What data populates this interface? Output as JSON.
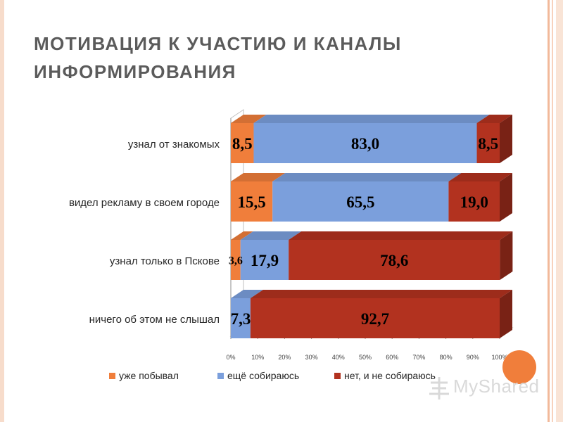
{
  "slide": {
    "title_line1": "МОТИВАЦИЯ К УЧАСТИЮ И КАНАЛЫ",
    "title_line2": "ИНФОРМИРОВАНИЯ"
  },
  "chart_data": {
    "type": "bar",
    "orientation": "horizontal",
    "stacked": "percent",
    "style": "3d",
    "categories": [
      "узнал от знакомых",
      "видел рекламу в своем городе",
      "узнал только в Пскове",
      "ничего об этом не слышал"
    ],
    "series": [
      {
        "name": "уже побывал",
        "values": [
          8.5,
          15.5,
          3.6,
          0
        ],
        "labels": [
          "8,5",
          "15,5",
          "3,6",
          ""
        ],
        "color": "#f07e3b"
      },
      {
        "name": "ещё собираюсь",
        "values": [
          83.0,
          65.5,
          17.9,
          7.3
        ],
        "labels": [
          "83,0",
          "65,5",
          "17,9",
          "7,3"
        ],
        "color": "#7b9fdc"
      },
      {
        "name": "нет, и не собираюсь",
        "values": [
          8.5,
          19.0,
          78.6,
          92.7
        ],
        "labels": [
          "8,5",
          "19,0",
          "78,6",
          "92,7"
        ],
        "color": "#b2321f"
      }
    ],
    "xlim": [
      0,
      100
    ],
    "x_ticks": [
      "0%",
      "10%",
      "20%",
      "30%",
      "40%",
      "50%",
      "60%",
      "70%",
      "80%",
      "90%",
      "100%"
    ],
    "grid": false,
    "legend_position": "bottom"
  },
  "watermark": {
    "text": "MyShared"
  },
  "colors": {
    "title": "#5b5b5b",
    "accent_dot": "#f07e3b"
  }
}
